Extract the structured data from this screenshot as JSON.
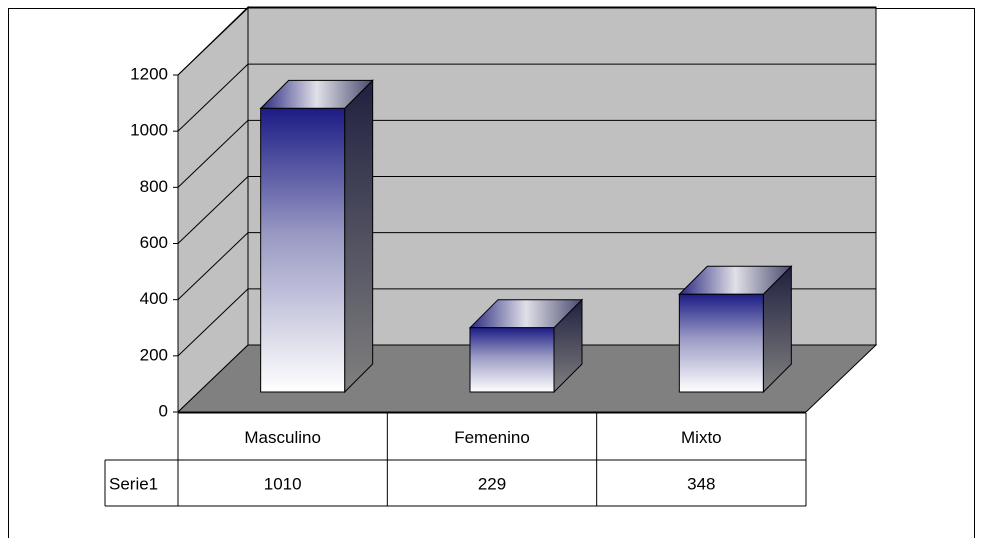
{
  "chart_data": {
    "type": "bar3d",
    "categories": [
      "Masculino",
      "Femenino",
      "Mixto"
    ],
    "series": [
      {
        "name": "Serie1",
        "color": "#1c1c86",
        "values": [
          1010,
          229,
          348
        ]
      }
    ],
    "ylim": [
      0,
      1200
    ],
    "yticks": [
      0,
      200,
      400,
      600,
      800,
      1000,
      1200
    ],
    "grid": true,
    "data_table": true
  }
}
